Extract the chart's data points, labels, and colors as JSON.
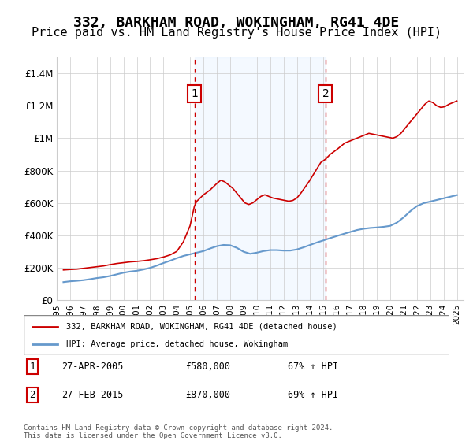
{
  "title": "332, BARKHAM ROAD, WOKINGHAM, RG41 4DE",
  "subtitle": "Price paid vs. HM Land Registry's House Price Index (HPI)",
  "title_fontsize": 13,
  "subtitle_fontsize": 11,
  "background_color": "#ffffff",
  "plot_bg_color": "#ffffff",
  "grid_color": "#cccccc",
  "ylim": [
    0,
    1500000
  ],
  "xlim_start": 1995.0,
  "xlim_end": 2025.5,
  "yticks": [
    0,
    200000,
    400000,
    600000,
    800000,
    1000000,
    1200000,
    1400000
  ],
  "ytick_labels": [
    "£0",
    "£200K",
    "£400K",
    "£600K",
    "£800K",
    "£1M",
    "£1.2M",
    "£1.4M"
  ],
  "xtick_years": [
    1995,
    1996,
    1997,
    1998,
    1999,
    2000,
    2001,
    2002,
    2003,
    2004,
    2005,
    2006,
    2007,
    2008,
    2009,
    2010,
    2011,
    2012,
    2013,
    2014,
    2015,
    2016,
    2017,
    2018,
    2019,
    2020,
    2021,
    2022,
    2023,
    2024,
    2025
  ],
  "sale1_x": 2005.32,
  "sale1_y": 580000,
  "sale1_label": "1",
  "sale2_x": 2015.15,
  "sale2_y": 870000,
  "sale2_label": "2",
  "red_line_color": "#cc0000",
  "blue_line_color": "#6699cc",
  "shade_color": "#ddeeff",
  "vline_color": "#cc0000",
  "marker_box_color": "#cc0000",
  "legend_label_red": "332, BARKHAM ROAD, WOKINGHAM, RG41 4DE (detached house)",
  "legend_label_blue": "HPI: Average price, detached house, Wokingham",
  "annotation1": [
    "1",
    "27-APR-2005",
    "£580,000",
    "67% ↑ HPI"
  ],
  "annotation2": [
    "2",
    "27-FEB-2015",
    "£870,000",
    "69% ↑ HPI"
  ],
  "footer_text": "Contains HM Land Registry data © Crown copyright and database right 2024.\nThis data is licensed under the Open Government Licence v3.0.",
  "red_hpi_data": {
    "years": [
      1995.5,
      1996.0,
      1996.5,
      1997.0,
      1997.5,
      1998.0,
      1998.5,
      1999.0,
      1999.5,
      2000.0,
      2000.5,
      2001.0,
      2001.5,
      2002.0,
      2002.5,
      2003.0,
      2003.5,
      2004.0,
      2004.5,
      2005.0,
      2005.32,
      2005.5,
      2006.0,
      2006.5,
      2007.0,
      2007.3,
      2007.6,
      2007.9,
      2008.2,
      2008.5,
      2008.8,
      2009.1,
      2009.4,
      2009.7,
      2010.0,
      2010.3,
      2010.6,
      2010.9,
      2011.2,
      2011.5,
      2011.8,
      2012.1,
      2012.4,
      2012.7,
      2013.0,
      2013.3,
      2013.6,
      2013.9,
      2014.2,
      2014.5,
      2014.8,
      2015.15,
      2015.5,
      2016.0,
      2016.3,
      2016.6,
      2016.9,
      2017.2,
      2017.5,
      2017.8,
      2018.1,
      2018.4,
      2018.7,
      2019.0,
      2019.3,
      2019.6,
      2019.9,
      2020.2,
      2020.5,
      2020.8,
      2021.1,
      2021.4,
      2021.7,
      2022.0,
      2022.3,
      2022.6,
      2022.9,
      2023.2,
      2023.5,
      2023.8,
      2024.1,
      2024.4,
      2024.7,
      2025.0
    ],
    "values": [
      185000,
      188000,
      190000,
      195000,
      200000,
      205000,
      210000,
      218000,
      225000,
      230000,
      235000,
      238000,
      242000,
      248000,
      255000,
      265000,
      278000,
      300000,
      360000,
      460000,
      580000,
      610000,
      650000,
      680000,
      720000,
      740000,
      730000,
      710000,
      690000,
      660000,
      630000,
      600000,
      590000,
      600000,
      620000,
      640000,
      650000,
      640000,
      630000,
      625000,
      620000,
      615000,
      610000,
      615000,
      630000,
      660000,
      695000,
      730000,
      770000,
      810000,
      850000,
      870000,
      900000,
      930000,
      950000,
      970000,
      980000,
      990000,
      1000000,
      1010000,
      1020000,
      1030000,
      1025000,
      1020000,
      1015000,
      1010000,
      1005000,
      1000000,
      1010000,
      1030000,
      1060000,
      1090000,
      1120000,
      1150000,
      1180000,
      1210000,
      1230000,
      1220000,
      1200000,
      1190000,
      1195000,
      1210000,
      1220000,
      1230000
    ]
  },
  "blue_hpi_data": {
    "years": [
      1995.5,
      1996.0,
      1996.5,
      1997.0,
      1997.5,
      1998.0,
      1998.5,
      1999.0,
      1999.5,
      2000.0,
      2000.5,
      2001.0,
      2001.5,
      2002.0,
      2002.5,
      2003.0,
      2003.5,
      2004.0,
      2004.5,
      2005.0,
      2005.5,
      2006.0,
      2006.5,
      2007.0,
      2007.5,
      2008.0,
      2008.5,
      2009.0,
      2009.5,
      2010.0,
      2010.5,
      2011.0,
      2011.5,
      2012.0,
      2012.5,
      2013.0,
      2013.5,
      2014.0,
      2014.5,
      2015.0,
      2015.5,
      2016.0,
      2016.5,
      2017.0,
      2017.5,
      2018.0,
      2018.5,
      2019.0,
      2019.5,
      2020.0,
      2020.5,
      2021.0,
      2021.5,
      2022.0,
      2022.5,
      2023.0,
      2023.5,
      2024.0,
      2024.5,
      2025.0
    ],
    "values": [
      110000,
      115000,
      118000,
      122000,
      128000,
      135000,
      140000,
      148000,
      158000,
      168000,
      175000,
      180000,
      188000,
      198000,
      212000,
      228000,
      242000,
      258000,
      272000,
      282000,
      292000,
      302000,
      318000,
      332000,
      340000,
      338000,
      322000,
      298000,
      285000,
      292000,
      302000,
      308000,
      308000,
      305000,
      305000,
      312000,
      325000,
      340000,
      355000,
      368000,
      382000,
      395000,
      408000,
      420000,
      432000,
      440000,
      445000,
      448000,
      452000,
      458000,
      478000,
      510000,
      548000,
      580000,
      598000,
      608000,
      618000,
      628000,
      638000,
      648000
    ]
  }
}
